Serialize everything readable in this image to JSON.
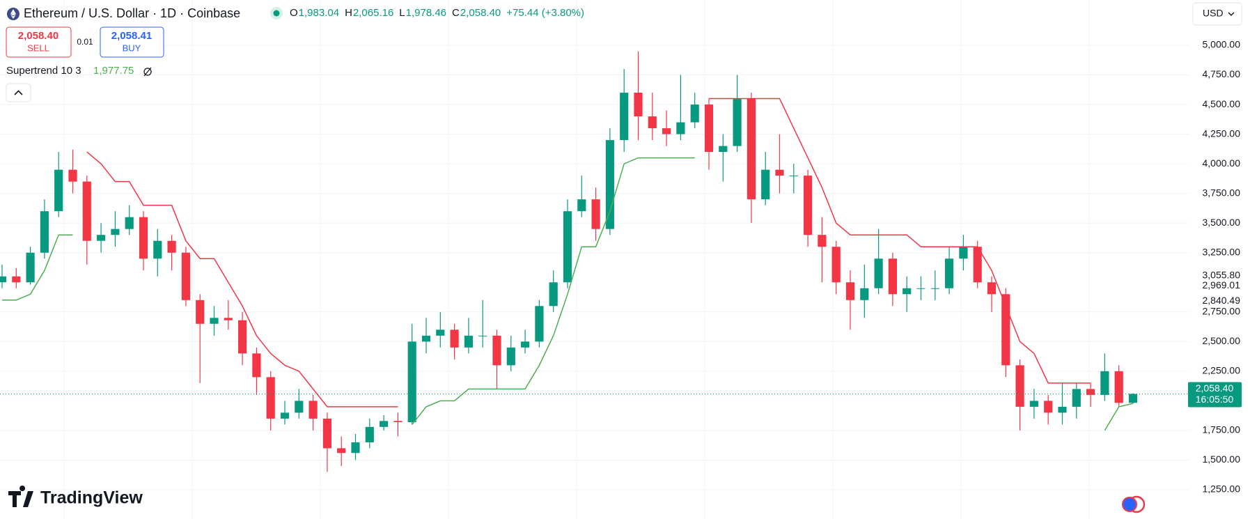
{
  "header": {
    "symbol": "Ethereum / U.S. Dollar · 1D · Coinbase",
    "ohlc": [
      {
        "key": "O",
        "value": "1,983.04"
      },
      {
        "key": "H",
        "value": "2,065.16"
      },
      {
        "key": "L",
        "value": "1,978.46"
      },
      {
        "key": "C",
        "value": "2,058.40"
      }
    ],
    "change": "+75.44 (+3.80%)",
    "currency": "USD"
  },
  "trade": {
    "sell_price": "2,058.40",
    "sell_label": "SELL",
    "spread": "0.01",
    "buy_price": "2,058.41",
    "buy_label": "BUY"
  },
  "indicator": {
    "name": "Supertrend 10 3",
    "value": "1,977.75"
  },
  "brand": "TradingView",
  "chart_data": {
    "type": "candlestick",
    "ylim": [
      1003,
      5382
    ],
    "yticks": [
      {
        "value": 1250,
        "label": "1,250.00"
      },
      {
        "value": 1500,
        "label": "1,500.00"
      },
      {
        "value": 1750,
        "label": "1,750.00"
      },
      {
        "value": 2250,
        "label": "2,250.00"
      },
      {
        "value": 2500,
        "label": "2,500.00"
      },
      {
        "value": 2750,
        "label": "2,750.00"
      },
      {
        "value": 3250,
        "label": "3,250.00"
      },
      {
        "value": 3500,
        "label": "3,500.00"
      },
      {
        "value": 3750,
        "label": "3,750.00"
      },
      {
        "value": 4000,
        "label": "4,000.00"
      },
      {
        "value": 4250,
        "label": "4,250.00"
      },
      {
        "value": 4500,
        "label": "4,500.00"
      },
      {
        "value": 4750,
        "label": "4,750.00"
      },
      {
        "value": 5000,
        "label": "5,000.00"
      }
    ],
    "grid": true,
    "price_markers": [
      {
        "value": 3055.8,
        "label": "3,055.80"
      },
      {
        "value": 2969.01,
        "label": "2,969.01"
      },
      {
        "value": 2840.49,
        "label": "2,840.49"
      }
    ],
    "last_price": {
      "value": 2058.4,
      "label": "2,058.40"
    },
    "countdown": "16:05:50",
    "up_color": "#089981",
    "down_color": "#f23645",
    "open": [
      3000,
      3050,
      3000,
      3250,
      3600,
      3950,
      3850,
      3350,
      3400,
      3450,
      3550,
      3200,
      3350,
      3250,
      2850,
      2650,
      2700,
      2680,
      2400,
      2200,
      1850,
      1900,
      2000,
      1850,
      1600,
      1560,
      1650,
      1780,
      1830,
      1820,
      2500,
      2550,
      2600,
      2450,
      2550,
      2550,
      2300,
      2450,
      2500,
      2800,
      3000,
      3600,
      3700,
      3450,
      4200,
      4600,
      4400,
      4300,
      4250,
      4350,
      4500,
      4100,
      4150,
      4550,
      3700,
      3950,
      3900,
      3900,
      3400,
      3300,
      3000,
      2850,
      2950,
      3200,
      2900,
      2950,
      2950,
      2950,
      3200,
      3300,
      3000,
      2900,
      2300,
      1950,
      2000,
      1900,
      1950,
      2100,
      2050,
      2250,
      1983.04
    ],
    "high": [
      3150,
      3120,
      3300,
      3700,
      4100,
      4120,
      3900,
      3500,
      3600,
      3650,
      3600,
      3450,
      3400,
      3300,
      2900,
      2800,
      2850,
      2750,
      2450,
      2250,
      2000,
      2100,
      2050,
      1900,
      1700,
      1720,
      1850,
      1880,
      1900,
      2650,
      2700,
      2750,
      2650,
      2700,
      2850,
      2600,
      2550,
      2600,
      2850,
      3100,
      3700,
      3900,
      3800,
      4300,
      4800,
      4950,
      4600,
      4450,
      4750,
      4600,
      4550,
      4250,
      4750,
      4600,
      4100,
      4250,
      4000,
      3950,
      3550,
      3350,
      3100,
      3150,
      3450,
      3250,
      3050,
      3050,
      3100,
      3300,
      3400,
      3350,
      3050,
      2950,
      2350,
      2100,
      2050,
      2150,
      2150,
      2150,
      2400,
      2300,
      2065.16
    ],
    "low": [
      2950,
      2950,
      2980,
      3200,
      3550,
      3750,
      3150,
      3250,
      3300,
      3400,
      3100,
      3050,
      3100,
      2800,
      2150,
      2550,
      2600,
      2300,
      2050,
      1750,
      1800,
      1850,
      1750,
      1400,
      1450,
      1500,
      1600,
      1750,
      1700,
      1800,
      2400,
      2450,
      2350,
      2400,
      2450,
      2100,
      2250,
      2400,
      2450,
      2750,
      2950,
      3550,
      3350,
      3400,
      4100,
      4200,
      4200,
      4150,
      4200,
      4300,
      3950,
      3850,
      4100,
      3500,
      3650,
      3750,
      3750,
      3300,
      3000,
      2900,
      2600,
      2700,
      2900,
      2800,
      2750,
      2850,
      2850,
      2900,
      3100,
      2950,
      2750,
      2200,
      1750,
      1850,
      1800,
      1800,
      1850,
      1950,
      2000,
      1950,
      1978.46
    ],
    "close": [
      3050,
      3000,
      3250,
      3600,
      3950,
      3850,
      3350,
      3400,
      3450,
      3550,
      3200,
      3350,
      3250,
      2850,
      2650,
      2700,
      2680,
      2400,
      2200,
      1850,
      1900,
      2000,
      1850,
      1600,
      1560,
      1650,
      1780,
      1830,
      1820,
      2500,
      2550,
      2600,
      2450,
      2550,
      2550,
      2300,
      2450,
      2500,
      2800,
      3000,
      3600,
      3700,
      3450,
      4200,
      4600,
      4400,
      4300,
      4250,
      4350,
      4500,
      4100,
      4150,
      4550,
      3700,
      3950,
      3900,
      3900,
      3400,
      3300,
      3000,
      2850,
      2950,
      3200,
      2900,
      2950,
      2950,
      2950,
      3200,
      3300,
      3000,
      2900,
      2300,
      1950,
      2000,
      1900,
      1950,
      2100,
      2050,
      2250,
      1983.04,
      2058.4
    ],
    "supertrend": {
      "up_color": "#4caf50",
      "down_color": "#f23645",
      "lower": [
        2850,
        2850,
        2900,
        3100,
        3400,
        3400,
        null,
        null,
        null,
        null,
        null,
        null,
        null,
        null,
        null,
        null,
        null,
        null,
        null,
        null,
        null,
        null,
        null,
        null,
        null,
        null,
        null,
        null,
        null,
        1800,
        1950,
        2000,
        2000,
        2100,
        2100,
        2100,
        2100,
        2100,
        2300,
        2550,
        2900,
        3300,
        3300,
        3600,
        4000,
        4050,
        4050,
        4050,
        4050,
        4050,
        null,
        null,
        null,
        null,
        null,
        null,
        null,
        null,
        null,
        null,
        null,
        null,
        null,
        null,
        null,
        null,
        null,
        null,
        null,
        null,
        null,
        null,
        null,
        null,
        null,
        null,
        null,
        null,
        1750,
        1950,
        1977.75
      ],
      "upper": [
        null,
        null,
        null,
        null,
        null,
        null,
        4100,
        4000,
        3850,
        3850,
        3650,
        3650,
        3650,
        3350,
        3200,
        3200,
        3000,
        2800,
        2550,
        2400,
        2300,
        2250,
        2100,
        1950,
        1950,
        1950,
        1950,
        1950,
        1950,
        null,
        null,
        null,
        null,
        null,
        null,
        null,
        null,
        null,
        null,
        null,
        null,
        null,
        null,
        null,
        null,
        null,
        null,
        null,
        null,
        null,
        4550,
        4550,
        4550,
        4550,
        4550,
        4550,
        4300,
        4050,
        3800,
        3500,
        3400,
        3400,
        3400,
        3400,
        3400,
        3300,
        3300,
        3300,
        3300,
        3300,
        3100,
        2800,
        2500,
        2400,
        2150,
        2150,
        2150,
        2150,
        null,
        null,
        null
      ]
    }
  }
}
